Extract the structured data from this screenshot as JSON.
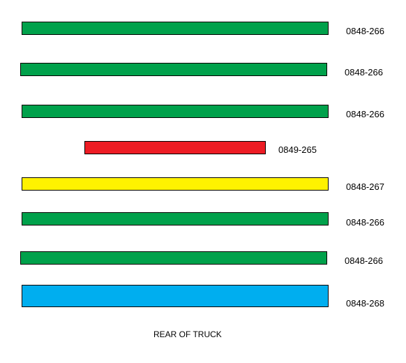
{
  "colors": {
    "green": "#00a14b",
    "red": "#ed1c24",
    "yellow": "#fff200",
    "blue": "#00aeef",
    "outline": "#000000"
  },
  "rows": [
    {
      "label": "0848-266",
      "color": "green"
    },
    {
      "label": "0848-266",
      "color": "green"
    },
    {
      "label": "0848-266",
      "color": "green"
    },
    {
      "label": "0849-265",
      "color": "red"
    },
    {
      "label": "0848-267",
      "color": "yellow"
    },
    {
      "label": "0848-266",
      "color": "green"
    },
    {
      "label": "0848-266",
      "color": "green"
    },
    {
      "label": "0848-268",
      "color": "blue"
    }
  ],
  "footer": {
    "caption": "REAR OF TRUCK"
  }
}
